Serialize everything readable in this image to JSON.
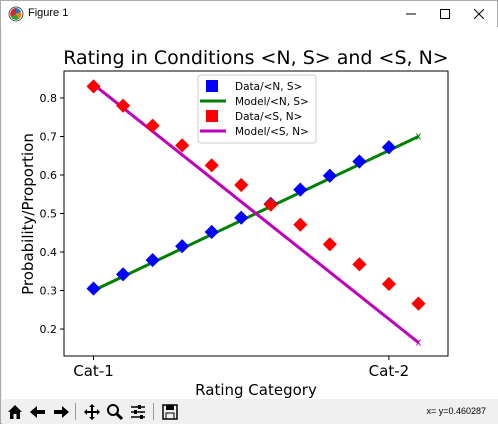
{
  "window": {
    "title": "Figure 1",
    "icons": {
      "app": "matplotlib-icon",
      "minimize": "minimize-icon",
      "maximize": "maximize-icon",
      "close": "close-icon"
    }
  },
  "toolbar": {
    "icons": [
      "home-icon",
      "back-arrow-icon",
      "forward-arrow-icon",
      "pan-icon",
      "zoom-icon",
      "subplots-config-icon",
      "save-icon"
    ],
    "coordinate_readout": "x= y=0.460287"
  },
  "chart_data": {
    "type": "line",
    "title": "Rating in Conditions <N, S> and <S, N>",
    "xlabel": "Rating Category",
    "ylabel": "Probability/Proportion",
    "categories": [
      "Cat-1",
      "Cat-2"
    ],
    "xlim": [
      -0.1,
      1.2
    ],
    "ylim": [
      0.13,
      0.87
    ],
    "yticks": [
      "0.2",
      "0.3",
      "0.4",
      "0.5",
      "0.6",
      "0.7",
      "0.8"
    ],
    "grid": false,
    "legend_position": "top-center",
    "series": [
      {
        "name": "Data/<N, S>",
        "kind": "markers",
        "marker": "square",
        "color": "#0000ff",
        "x": [
          0,
          0.1,
          0.2,
          0.3,
          0.4,
          0.5,
          0.6,
          0.7,
          0.8,
          0.9,
          1.0
        ],
        "y": [
          0.305,
          0.342,
          0.379,
          0.415,
          0.452,
          0.489,
          0.525,
          0.562,
          0.598,
          0.635,
          0.672
        ]
      },
      {
        "name": "Model/<N, S>",
        "kind": "line",
        "color": "#008000",
        "x": [
          0,
          1.1
        ],
        "y": [
          0.3,
          0.7
        ]
      },
      {
        "name": "Data/<S, N>",
        "kind": "markers",
        "marker": "square",
        "color": "#ff0000",
        "x": [
          0,
          0.1,
          0.2,
          0.3,
          0.4,
          0.5,
          0.6,
          0.7,
          0.8,
          0.9,
          1.0,
          1.1
        ],
        "y": [
          0.83,
          0.78,
          0.728,
          0.677,
          0.625,
          0.574,
          0.523,
          0.471,
          0.42,
          0.368,
          0.317,
          0.266
        ]
      },
      {
        "name": "Model/<S, N>",
        "kind": "line",
        "color": "#bf00bf",
        "x": [
          0,
          1.1
        ],
        "y": [
          0.835,
          0.165
        ]
      }
    ]
  }
}
